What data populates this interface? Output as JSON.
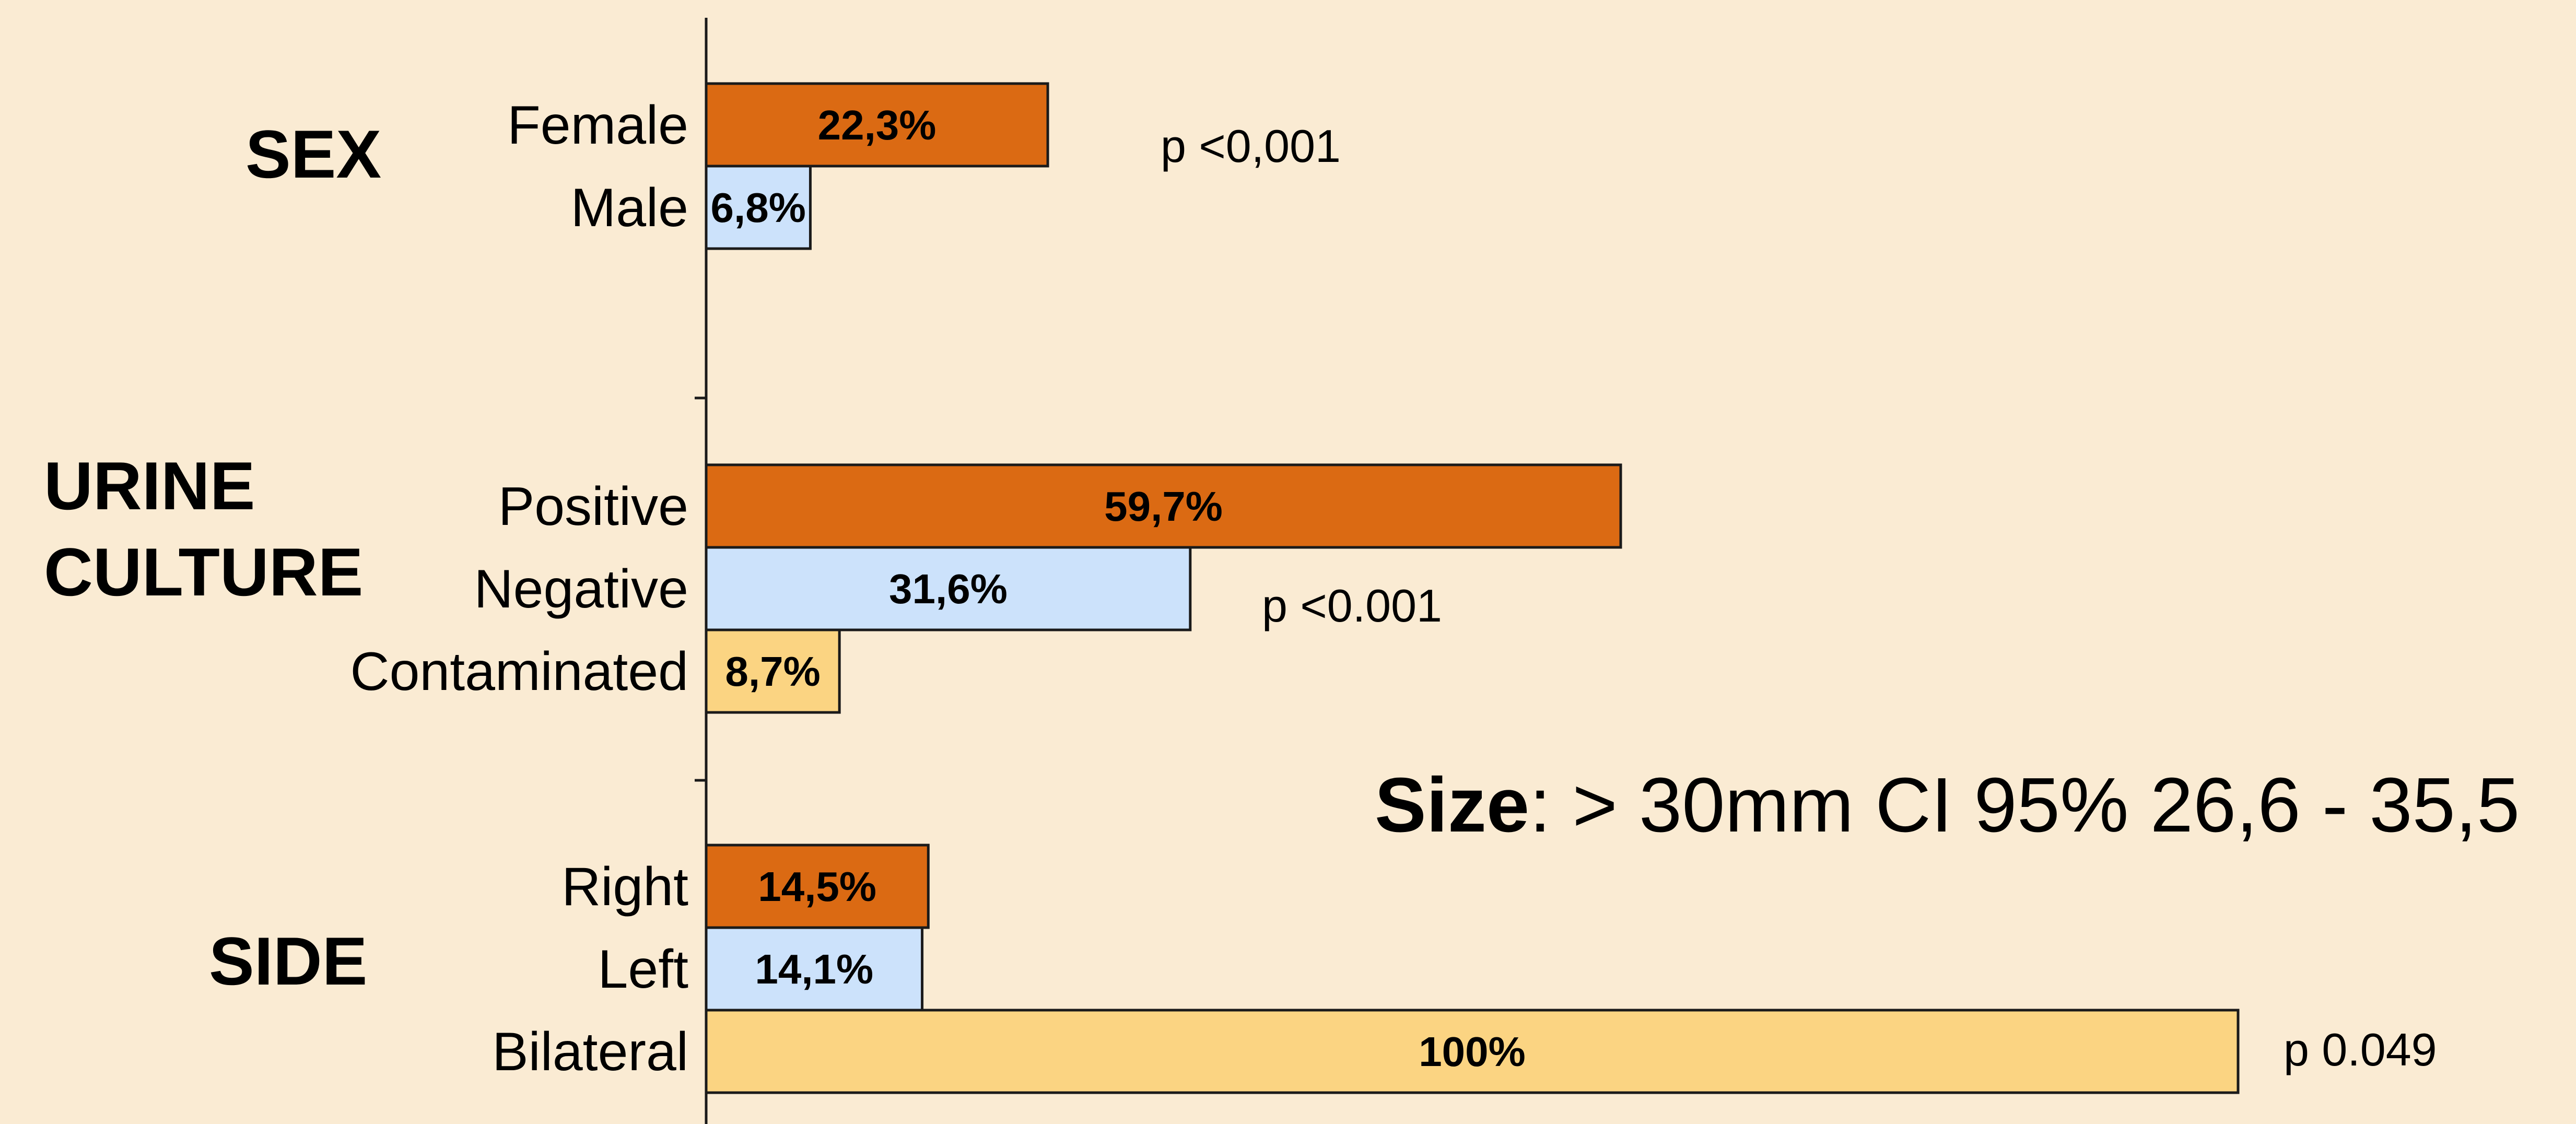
{
  "colors": {
    "background": "#FAEBD3",
    "axis": "#1a1a1a",
    "orange": "#DB6A13",
    "light_blue": "#CCE2FB",
    "light_yellow": "#FBD482",
    "bar_outline": "#1a1a1a",
    "text": "#000000"
  },
  "chart_data": {
    "type": "bar",
    "orientation": "horizontal",
    "xlim": [
      0,
      100
    ],
    "grid": false,
    "groups": [
      {
        "name": "SEX",
        "p_value": "p <0,001",
        "bars": [
          {
            "category": "Female",
            "value": 22.3,
            "label": "22,3%",
            "color": "orange"
          },
          {
            "category": "Male",
            "value": 6.8,
            "label": "6,8%",
            "color": "light_blue"
          }
        ]
      },
      {
        "name": "URINE CULTURE",
        "name_lines": [
          "URINE",
          "CULTURE"
        ],
        "p_value": "p <0.001",
        "bars": [
          {
            "category": "Positive",
            "value": 59.7,
            "label": "59,7%",
            "color": "orange"
          },
          {
            "category": "Negative",
            "value": 31.6,
            "label": "31,6%",
            "color": "light_blue"
          },
          {
            "category": "Contaminated",
            "value": 8.7,
            "label": "8,7%",
            "color": "light_yellow"
          }
        ]
      },
      {
        "name": "SIDE",
        "p_value": "p 0.049",
        "bars": [
          {
            "category": "Right",
            "value": 14.5,
            "label": "14,5%",
            "color": "orange"
          },
          {
            "category": "Left",
            "value": 14.1,
            "label": "14,1%",
            "color": "light_blue"
          },
          {
            "category": "Bilateral",
            "value": 100,
            "label": "100%",
            "color": "light_yellow"
          }
        ]
      }
    ]
  },
  "annotation": {
    "bold": "Size",
    "rest": ": > 30mm CI 95% 26,6 - 35,5"
  }
}
